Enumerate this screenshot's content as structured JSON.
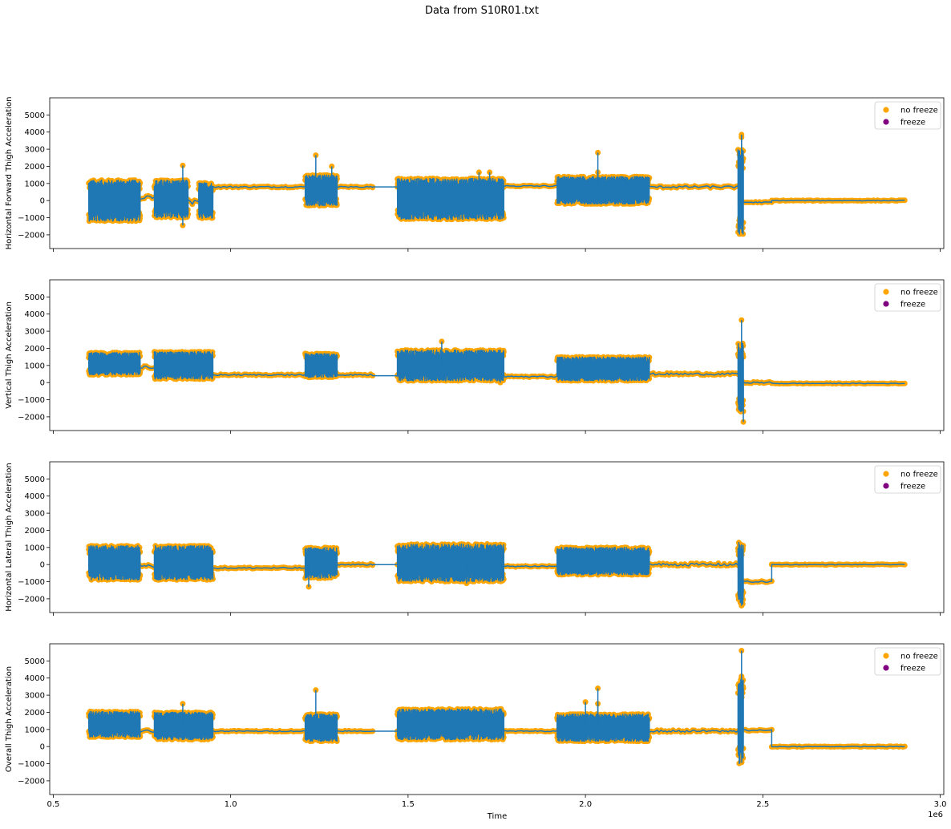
{
  "figure": {
    "title": "Data from S10R01.txt",
    "xlabel": "Time",
    "x_offset_label": "1e6"
  },
  "chart_data": [
    {
      "type": "scatter",
      "ylabel": "Horizontal Forward Thigh Acceleration",
      "xlim": [
        0.49,
        3.01
      ],
      "ylim": [
        -2800,
        6000
      ],
      "legend_position": "top-right",
      "series": [
        {
          "name": "no freeze",
          "color": "#ffa500"
        },
        {
          "name": "freeze",
          "color": "#800080"
        }
      ],
      "segments": [
        {
          "x": [
            0.6,
            0.745
          ],
          "base": 0,
          "amp": 1200,
          "kind": "osc"
        },
        {
          "x": [
            0.745,
            0.785
          ],
          "base": 200,
          "amp": 120,
          "kind": "noise"
        },
        {
          "x": [
            0.785,
            0.88
          ],
          "base": 100,
          "amp": 1100,
          "kind": "osc"
        },
        {
          "x": [
            0.88,
            0.91
          ],
          "base": 0,
          "amp": 250,
          "kind": "noise"
        },
        {
          "x": [
            0.91,
            0.95
          ],
          "base": 0,
          "amp": 1050,
          "kind": "osc"
        },
        {
          "x": [
            0.95,
            1.21
          ],
          "base": 800,
          "amp": 40,
          "kind": "flat"
        },
        {
          "x": [
            1.21,
            1.3
          ],
          "base": 600,
          "amp": 900,
          "kind": "osc"
        },
        {
          "x": [
            1.3,
            1.4
          ],
          "base": 800,
          "amp": 40,
          "kind": "flat"
        },
        {
          "x": [
            1.4,
            1.47
          ],
          "base": 800,
          "amp": 0,
          "kind": "line"
        },
        {
          "x": [
            1.47,
            1.77
          ],
          "base": 100,
          "amp": 1200,
          "kind": "osc"
        },
        {
          "x": [
            1.77,
            1.92
          ],
          "base": 850,
          "amp": 40,
          "kind": "flat"
        },
        {
          "x": [
            1.92,
            2.18
          ],
          "base": 600,
          "amp": 800,
          "kind": "osc"
        },
        {
          "x": [
            2.18,
            2.43
          ],
          "base": 800,
          "amp": 60,
          "kind": "flat"
        },
        {
          "x": [
            2.43,
            2.445
          ],
          "base": 500,
          "amp": 2500,
          "kind": "osc"
        },
        {
          "x": [
            2.445,
            2.525
          ],
          "base": -100,
          "amp": 30,
          "kind": "flat"
        },
        {
          "x": [
            2.525,
            2.9
          ],
          "base": 0,
          "amp": 20,
          "kind": "flat"
        }
      ],
      "spikes": [
        {
          "x": 0.865,
          "y": 2050
        },
        {
          "x": 0.865,
          "y": -1450
        },
        {
          "x": 1.24,
          "y": 2650
        },
        {
          "x": 1.285,
          "y": 2000
        },
        {
          "x": 2.035,
          "y": 2800
        },
        {
          "x": 2.035,
          "y": 1650
        },
        {
          "x": 2.44,
          "y": 3850
        },
        {
          "x": 2.44,
          "y": 3700
        },
        {
          "x": 2.445,
          "y": 2450
        },
        {
          "x": 1.7,
          "y": 1650
        },
        {
          "x": 1.73,
          "y": 1650
        }
      ]
    },
    {
      "type": "scatter",
      "ylabel": "Vertical Thigh Acceleration",
      "xlim": [
        0.49,
        3.01
      ],
      "ylim": [
        -2800,
        6000
      ],
      "legend_position": "top-right",
      "series": [
        {
          "name": "no freeze",
          "color": "#ffa500"
        },
        {
          "name": "freeze",
          "color": "#800080"
        }
      ],
      "segments": [
        {
          "x": [
            0.6,
            0.745
          ],
          "base": 1100,
          "amp": 650,
          "kind": "osc"
        },
        {
          "x": [
            0.745,
            0.785
          ],
          "base": 900,
          "amp": 100,
          "kind": "noise"
        },
        {
          "x": [
            0.785,
            0.95
          ],
          "base": 1000,
          "amp": 800,
          "kind": "osc"
        },
        {
          "x": [
            0.95,
            1.21
          ],
          "base": 450,
          "amp": 40,
          "kind": "flat"
        },
        {
          "x": [
            1.21,
            1.3
          ],
          "base": 1000,
          "amp": 700,
          "kind": "osc"
        },
        {
          "x": [
            1.3,
            1.4
          ],
          "base": 450,
          "amp": 40,
          "kind": "flat"
        },
        {
          "x": [
            1.4,
            1.47
          ],
          "base": 400,
          "amp": 0,
          "kind": "line"
        },
        {
          "x": [
            1.47,
            1.77
          ],
          "base": 1000,
          "amp": 900,
          "kind": "osc"
        },
        {
          "x": [
            1.77,
            1.92
          ],
          "base": 350,
          "amp": 40,
          "kind": "flat"
        },
        {
          "x": [
            1.92,
            2.18
          ],
          "base": 800,
          "amp": 700,
          "kind": "osc"
        },
        {
          "x": [
            2.18,
            2.43
          ],
          "base": 500,
          "amp": 60,
          "kind": "flat"
        },
        {
          "x": [
            2.43,
            2.445
          ],
          "base": 300,
          "amp": 2000,
          "kind": "osc"
        },
        {
          "x": [
            2.445,
            2.525
          ],
          "base": 0,
          "amp": 40,
          "kind": "flat"
        },
        {
          "x": [
            2.525,
            2.9
          ],
          "base": -50,
          "amp": 20,
          "kind": "flat"
        }
      ],
      "spikes": [
        {
          "x": 2.44,
          "y": 3650
        },
        {
          "x": 2.445,
          "y": -2300
        },
        {
          "x": 2.445,
          "y": 1500
        },
        {
          "x": 1.595,
          "y": 2400
        },
        {
          "x": 1.76,
          "y": 0
        }
      ]
    },
    {
      "type": "scatter",
      "ylabel": "Horizontal Lateral Thigh Acceleration",
      "xlim": [
        0.49,
        3.01
      ],
      "ylim": [
        -2800,
        6000
      ],
      "legend_position": "top-right",
      "series": [
        {
          "name": "no freeze",
          "color": "#ffa500"
        },
        {
          "name": "freeze",
          "color": "#800080"
        }
      ],
      "segments": [
        {
          "x": [
            0.6,
            0.745
          ],
          "base": 100,
          "amp": 1000,
          "kind": "osc"
        },
        {
          "x": [
            0.745,
            0.785
          ],
          "base": -100,
          "amp": 100,
          "kind": "noise"
        },
        {
          "x": [
            0.785,
            0.95
          ],
          "base": 100,
          "amp": 1000,
          "kind": "osc"
        },
        {
          "x": [
            0.95,
            1.21
          ],
          "base": -200,
          "amp": 40,
          "kind": "flat"
        },
        {
          "x": [
            1.21,
            1.3
          ],
          "base": 100,
          "amp": 900,
          "kind": "osc"
        },
        {
          "x": [
            1.3,
            1.4
          ],
          "base": 0,
          "amp": 40,
          "kind": "flat"
        },
        {
          "x": [
            1.4,
            1.47
          ],
          "base": 0,
          "amp": 0,
          "kind": "line"
        },
        {
          "x": [
            1.47,
            1.77
          ],
          "base": 100,
          "amp": 1100,
          "kind": "osc"
        },
        {
          "x": [
            1.77,
            1.92
          ],
          "base": -100,
          "amp": 40,
          "kind": "flat"
        },
        {
          "x": [
            1.92,
            2.18
          ],
          "base": 200,
          "amp": 800,
          "kind": "osc"
        },
        {
          "x": [
            2.18,
            2.43
          ],
          "base": 0,
          "amp": 80,
          "kind": "flat"
        },
        {
          "x": [
            2.43,
            2.445
          ],
          "base": -500,
          "amp": 1800,
          "kind": "osc"
        },
        {
          "x": [
            2.445,
            2.525
          ],
          "base": -1000,
          "amp": 40,
          "kind": "flat"
        },
        {
          "x": [
            2.525,
            2.9
          ],
          "base": 0,
          "amp": 20,
          "kind": "flat"
        }
      ],
      "spikes": [
        {
          "x": 2.44,
          "y": -2400
        },
        {
          "x": 1.22,
          "y": -1300
        },
        {
          "x": 1.665,
          "y": -1100
        }
      ]
    },
    {
      "type": "scatter",
      "ylabel": "Overall Thigh Acceleration",
      "xlim": [
        0.49,
        3.01
      ],
      "ylim": [
        -2800,
        6000
      ],
      "legend_position": "top-right",
      "series": [
        {
          "name": "no freeze",
          "color": "#ffa500"
        },
        {
          "name": "freeze",
          "color": "#800080"
        }
      ],
      "segments": [
        {
          "x": [
            0.6,
            0.745
          ],
          "base": 1300,
          "amp": 750,
          "kind": "osc"
        },
        {
          "x": [
            0.745,
            0.785
          ],
          "base": 900,
          "amp": 80,
          "kind": "noise"
        },
        {
          "x": [
            0.785,
            0.95
          ],
          "base": 1200,
          "amp": 800,
          "kind": "osc"
        },
        {
          "x": [
            0.95,
            1.21
          ],
          "base": 900,
          "amp": 30,
          "kind": "flat"
        },
        {
          "x": [
            1.21,
            1.3
          ],
          "base": 1100,
          "amp": 800,
          "kind": "osc"
        },
        {
          "x": [
            1.3,
            1.4
          ],
          "base": 900,
          "amp": 30,
          "kind": "flat"
        },
        {
          "x": [
            1.4,
            1.47
          ],
          "base": 900,
          "amp": 0,
          "kind": "line"
        },
        {
          "x": [
            1.47,
            1.77
          ],
          "base": 1300,
          "amp": 900,
          "kind": "osc"
        },
        {
          "x": [
            1.77,
            1.92
          ],
          "base": 900,
          "amp": 30,
          "kind": "flat"
        },
        {
          "x": [
            1.92,
            2.18
          ],
          "base": 1100,
          "amp": 800,
          "kind": "osc"
        },
        {
          "x": [
            2.18,
            2.43
          ],
          "base": 900,
          "amp": 60,
          "kind": "flat"
        },
        {
          "x": [
            2.43,
            2.445
          ],
          "base": 1500,
          "amp": 2500,
          "kind": "osc"
        },
        {
          "x": [
            2.445,
            2.525
          ],
          "base": 950,
          "amp": 40,
          "kind": "flat"
        },
        {
          "x": [
            2.525,
            2.9
          ],
          "base": 0,
          "amp": 20,
          "kind": "flat"
        }
      ],
      "spikes": [
        {
          "x": 2.44,
          "y": 5600
        },
        {
          "x": 2.44,
          "y": 4100
        },
        {
          "x": 2.445,
          "y": 3400
        },
        {
          "x": 1.24,
          "y": 3300
        },
        {
          "x": 2.035,
          "y": 3400
        },
        {
          "x": 2.035,
          "y": 2500
        },
        {
          "x": 0.865,
          "y": 2500
        },
        {
          "x": 2.0,
          "y": 2600
        }
      ]
    }
  ],
  "axes": {
    "yticks": [
      -2000,
      -1000,
      0,
      1000,
      2000,
      3000,
      4000,
      5000
    ],
    "xticks": [
      0.5,
      1.0,
      1.5,
      2.0,
      2.5,
      3.0
    ],
    "xtick_labels": [
      "0.5",
      "1.0",
      "1.5",
      "2.0",
      "2.5",
      "3.0"
    ]
  },
  "colors": {
    "line": "#1f77b4",
    "no_freeze": "#ffa500",
    "freeze": "#800080"
  }
}
